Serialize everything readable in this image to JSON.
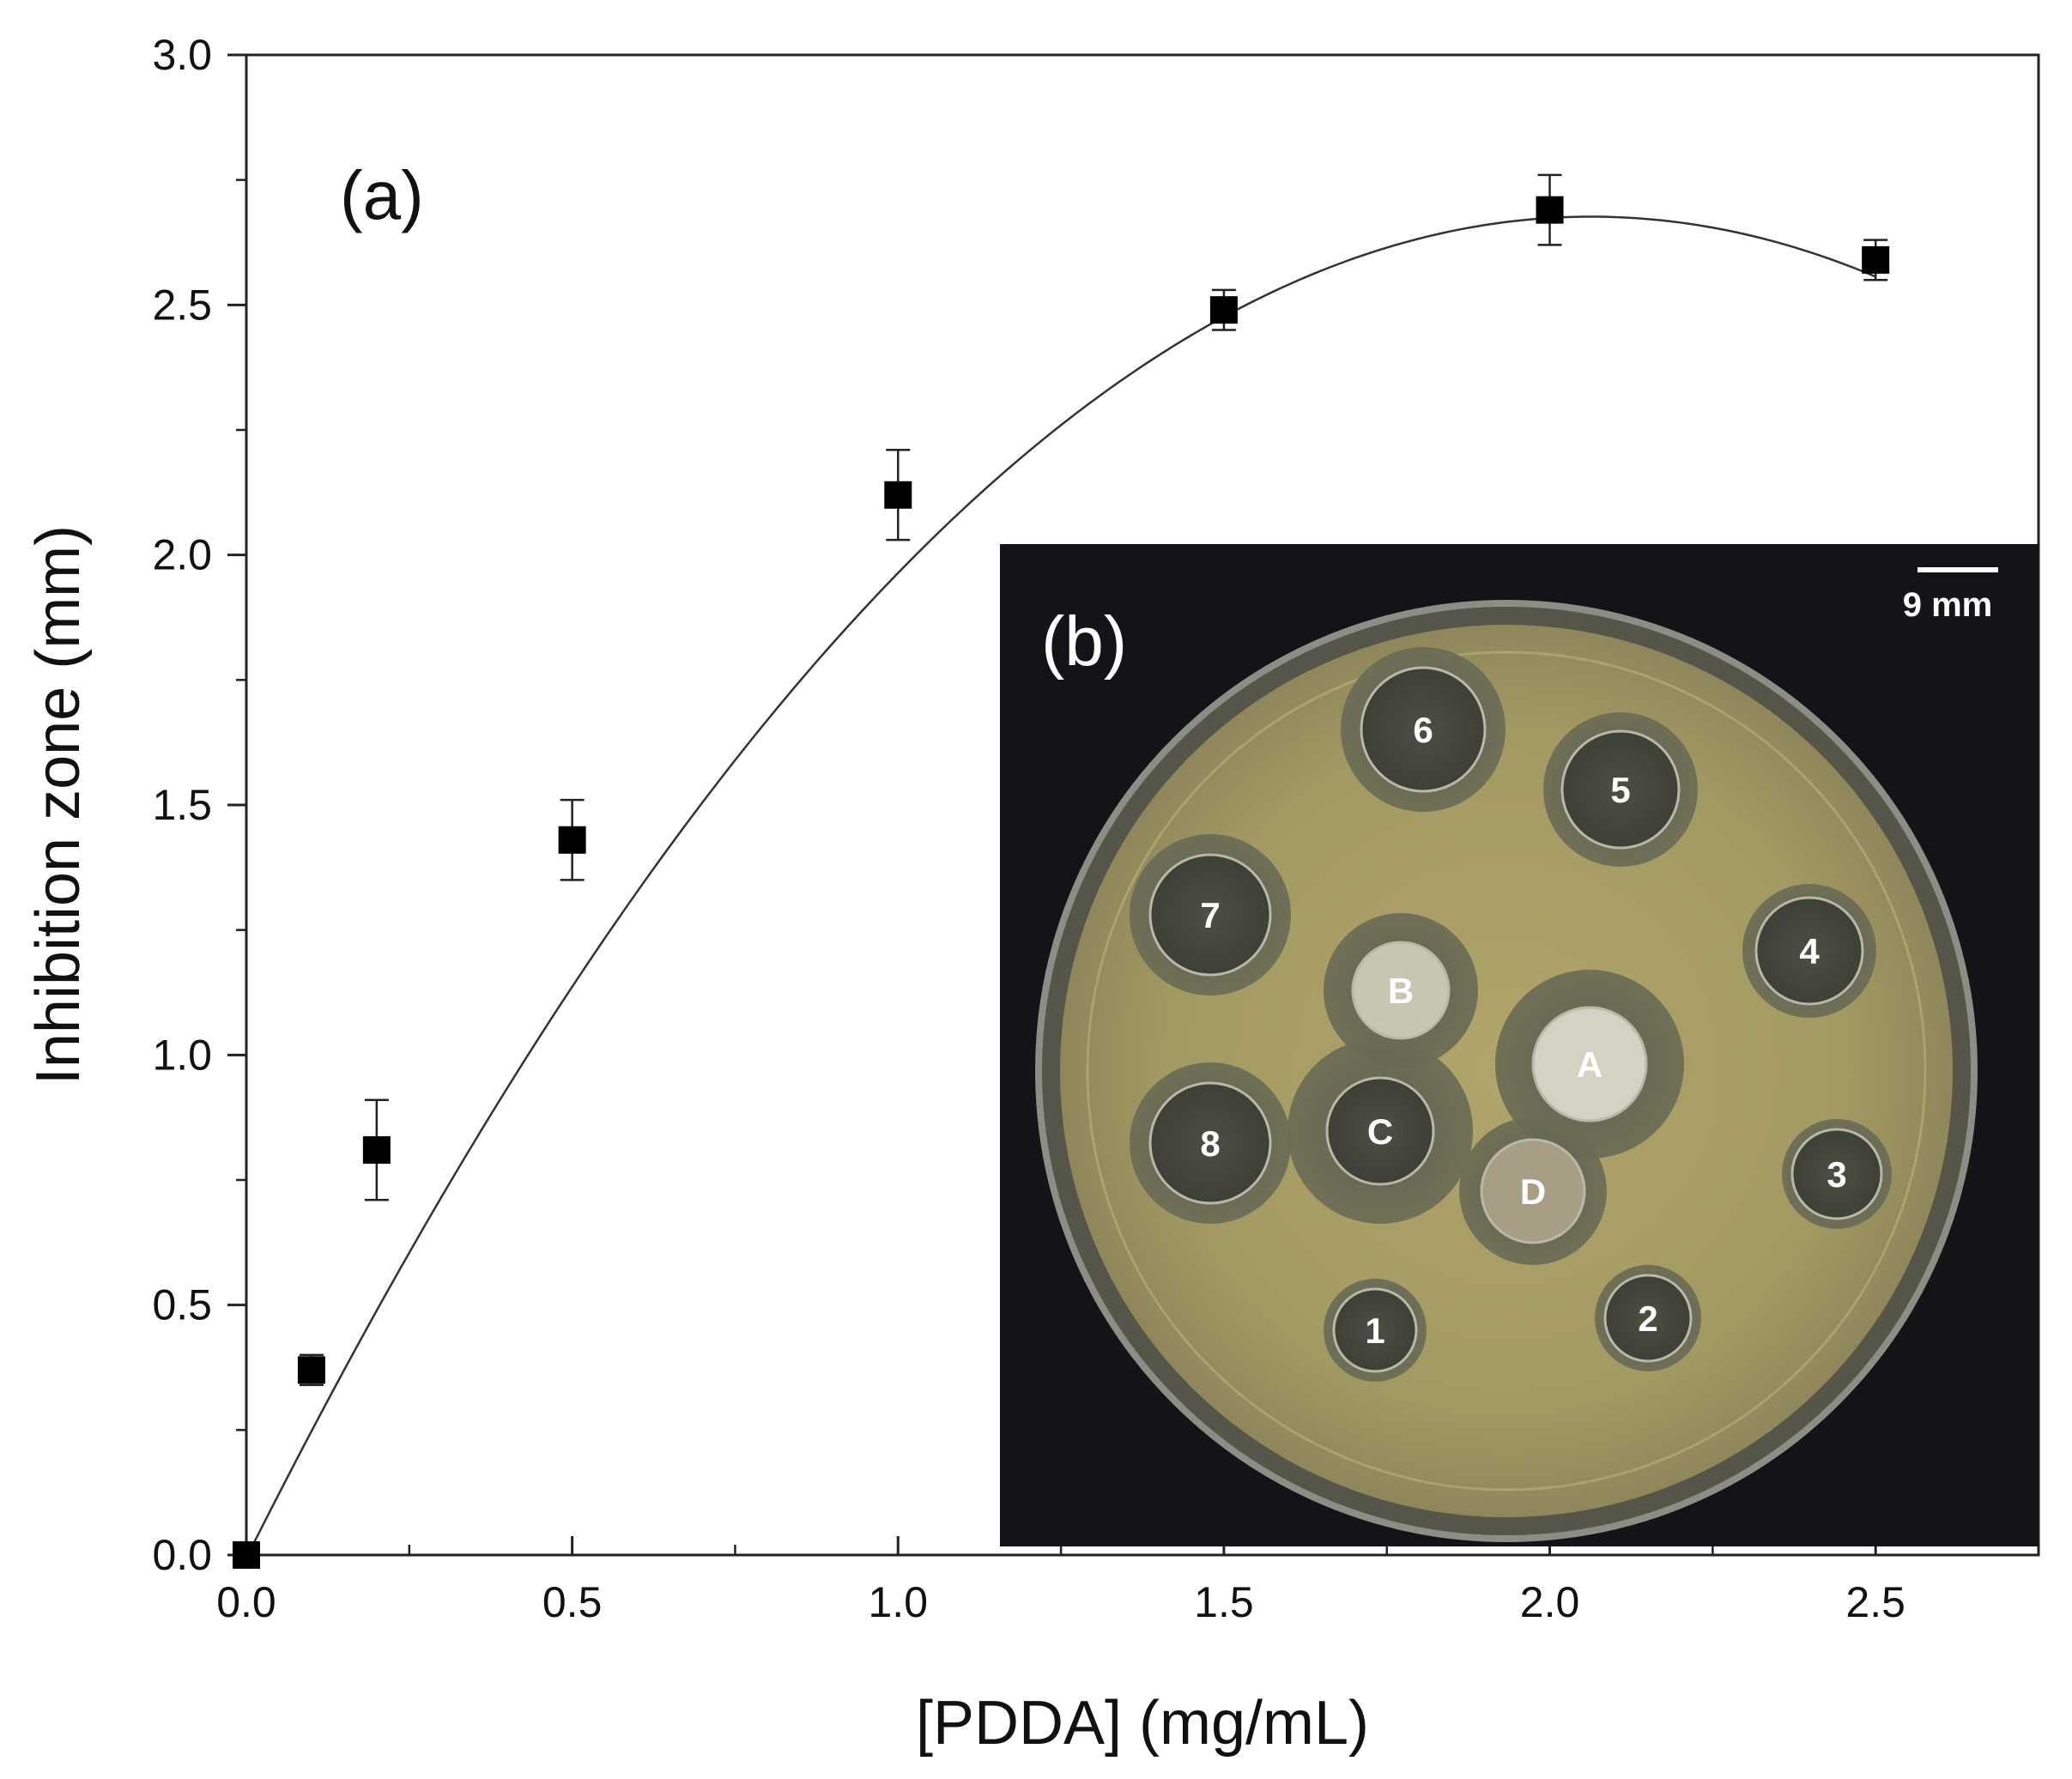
{
  "chart_data": {
    "type": "scatter",
    "panel_label": "(a)",
    "xlabel": "[PDDA] (mg/mL)",
    "ylabel": "Inhibition zone (mm)",
    "xlim": [
      0,
      2.75
    ],
    "ylim": [
      0,
      3.0
    ],
    "x_ticks": [
      "0.0",
      "0.5",
      "1.0",
      "1.5",
      "2.0",
      "2.5"
    ],
    "y_ticks": [
      "0.0",
      "0.5",
      "1.0",
      "1.5",
      "2.0",
      "2.5",
      "3.0"
    ],
    "grid": false,
    "series": [
      {
        "marker": "square",
        "color": "#000000",
        "x": [
          0.0,
          0.1,
          0.2,
          0.5,
          1.0,
          1.5,
          2.0,
          2.5
        ],
        "y": [
          0.0,
          0.37,
          0.81,
          1.43,
          2.12,
          2.49,
          2.69,
          2.59
        ],
        "error": [
          0.0,
          0.03,
          0.1,
          0.08,
          0.09,
          0.04,
          0.07,
          0.04
        ]
      }
    ],
    "fit_curve": {
      "type": "polynomial",
      "color": "#333333",
      "coefficients": [
        -0.006,
        2.6,
        -0.63
      ]
    }
  },
  "inset": {
    "panel_label": "(b)",
    "scale_bar_label": "9 mm",
    "wells": [
      {
        "label": "1"
      },
      {
        "label": "2"
      },
      {
        "label": "3"
      },
      {
        "label": "4"
      },
      {
        "label": "5"
      },
      {
        "label": "6"
      },
      {
        "label": "7"
      },
      {
        "label": "8"
      },
      {
        "label": "A"
      },
      {
        "label": "B"
      },
      {
        "label": "C"
      },
      {
        "label": "D"
      }
    ]
  }
}
